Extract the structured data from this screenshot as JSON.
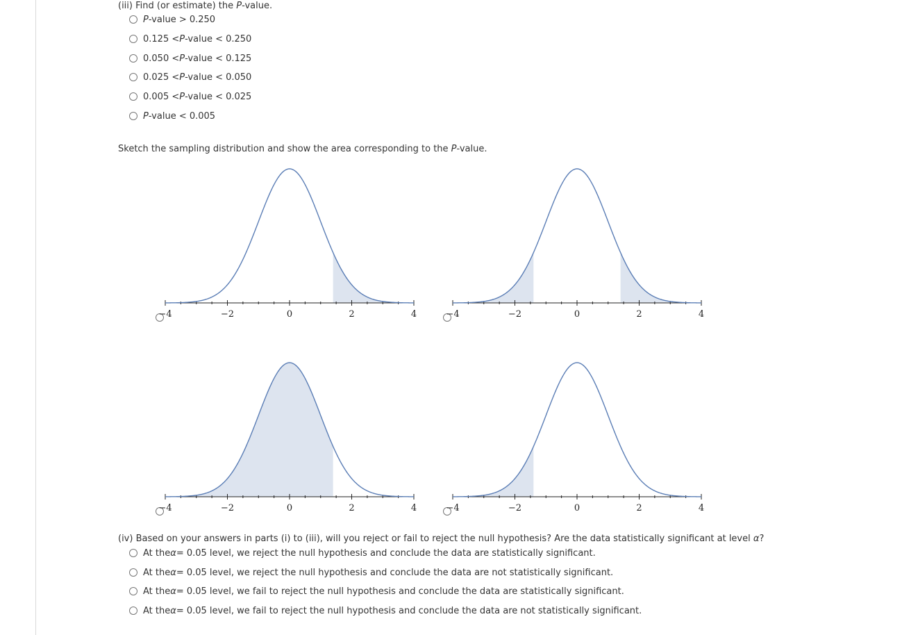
{
  "part3": {
    "question_prefix": "(iii) Find (or estimate) the ",
    "question_italic": "P",
    "question_suffix": "-value.",
    "options": [
      {
        "pre": "",
        "italic": "P",
        "post": "-value > 0.250"
      },
      {
        "pre": "0.125 < ",
        "italic": "P",
        "post": "-value < 0.250"
      },
      {
        "pre": "0.050 < ",
        "italic": "P",
        "post": "-value < 0.125"
      },
      {
        "pre": "0.025 < ",
        "italic": "P",
        "post": "-value < 0.050"
      },
      {
        "pre": "0.005 < ",
        "italic": "P",
        "post": "-value < 0.025"
      },
      {
        "pre": "",
        "italic": "P",
        "post": "-value < 0.005"
      }
    ]
  },
  "sketch": {
    "prompt_prefix": "Sketch the sampling distribution and show the area corresponding to the ",
    "prompt_italic": "P",
    "prompt_suffix": "-value."
  },
  "chart_data": [
    {
      "type": "area",
      "distribution": "standard normal",
      "x_ticks": [
        -4,
        -2,
        0,
        2,
        4
      ],
      "xlim": [
        -4,
        4
      ],
      "shaded_regions": [
        [
          1.4,
          4
        ]
      ],
      "curve_color": "#5a7db5",
      "fill_color": "#dde4ef"
    },
    {
      "type": "area",
      "distribution": "standard normal",
      "x_ticks": [
        -4,
        -2,
        0,
        2,
        4
      ],
      "xlim": [
        -4,
        4
      ],
      "shaded_regions": [
        [
          -4,
          -1.4
        ],
        [
          1.4,
          4
        ]
      ],
      "curve_color": "#5a7db5",
      "fill_color": "#dde4ef"
    },
    {
      "type": "area",
      "distribution": "standard normal",
      "x_ticks": [
        -4,
        -2,
        0,
        2,
        4
      ],
      "xlim": [
        -4,
        4
      ],
      "shaded_regions": [
        [
          -4,
          1.4
        ]
      ],
      "curve_color": "#5a7db5",
      "fill_color": "#dde4ef"
    },
    {
      "type": "area",
      "distribution": "standard normal",
      "x_ticks": [
        -4,
        -2,
        0,
        2,
        4
      ],
      "xlim": [
        -4,
        4
      ],
      "shaded_regions": [
        [
          -4,
          -1.4
        ]
      ],
      "curve_color": "#5a7db5",
      "fill_color": "#dde4ef"
    }
  ],
  "part4": {
    "question_prefix": "(iv) Based on your answers in parts (i) to (iii), will you reject or fail to reject the null hypothesis? Are the data statistically significant at level ",
    "question_italic": "α",
    "question_suffix": "?",
    "options": [
      {
        "pre": "At the ",
        "italic": "α",
        "post": " = 0.05 level, we reject the null hypothesis and conclude the data are statistically significant."
      },
      {
        "pre": "At the ",
        "italic": "α",
        "post": " = 0.05 level, we reject the null hypothesis and conclude the data are not statistically significant."
      },
      {
        "pre": "At the ",
        "italic": "α",
        "post": " = 0.05 level, we fail to reject the null hypothesis and conclude the data are statistically significant."
      },
      {
        "pre": "At the ",
        "italic": "α",
        "post": " = 0.05 level, we fail to reject the null hypothesis and conclude the data are not statistically significant."
      }
    ]
  }
}
